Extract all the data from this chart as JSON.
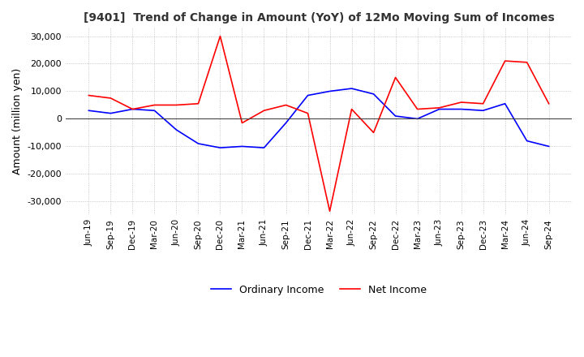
{
  "title": "[9401]  Trend of Change in Amount (YoY) of 12Mo Moving Sum of Incomes",
  "ylabel": "Amount (million yen)",
  "ylim": [
    -35000,
    33000
  ],
  "yticks": [
    -30000,
    -20000,
    -10000,
    0,
    10000,
    20000,
    30000
  ],
  "background_color": "#ffffff",
  "grid_color": "#aaaaaa",
  "ordinary_income_color": "#0000ff",
  "net_income_color": "#ff0000",
  "dates": [
    "Jun-19",
    "Sep-19",
    "Dec-19",
    "Mar-20",
    "Jun-20",
    "Sep-20",
    "Dec-20",
    "Mar-21",
    "Jun-21",
    "Sep-21",
    "Dec-21",
    "Mar-22",
    "Jun-22",
    "Sep-22",
    "Dec-22",
    "Mar-23",
    "Jun-23",
    "Sep-23",
    "Dec-23",
    "Mar-24",
    "Jun-24",
    "Sep-24"
  ],
  "ordinary_income": [
    3000,
    2000,
    3500,
    3000,
    -4000,
    -9000,
    -10500,
    -10000,
    -10500,
    -1500,
    8500,
    10000,
    11000,
    9000,
    1000,
    0,
    3500,
    3500,
    3000,
    5500,
    -8000,
    -10000
  ],
  "net_income": [
    8500,
    7500,
    3500,
    5000,
    5000,
    5500,
    30000,
    -1500,
    3000,
    5000,
    2000,
    -33500,
    3500,
    -5000,
    15000,
    3500,
    4000,
    6000,
    5500,
    21000,
    20500,
    5500
  ]
}
